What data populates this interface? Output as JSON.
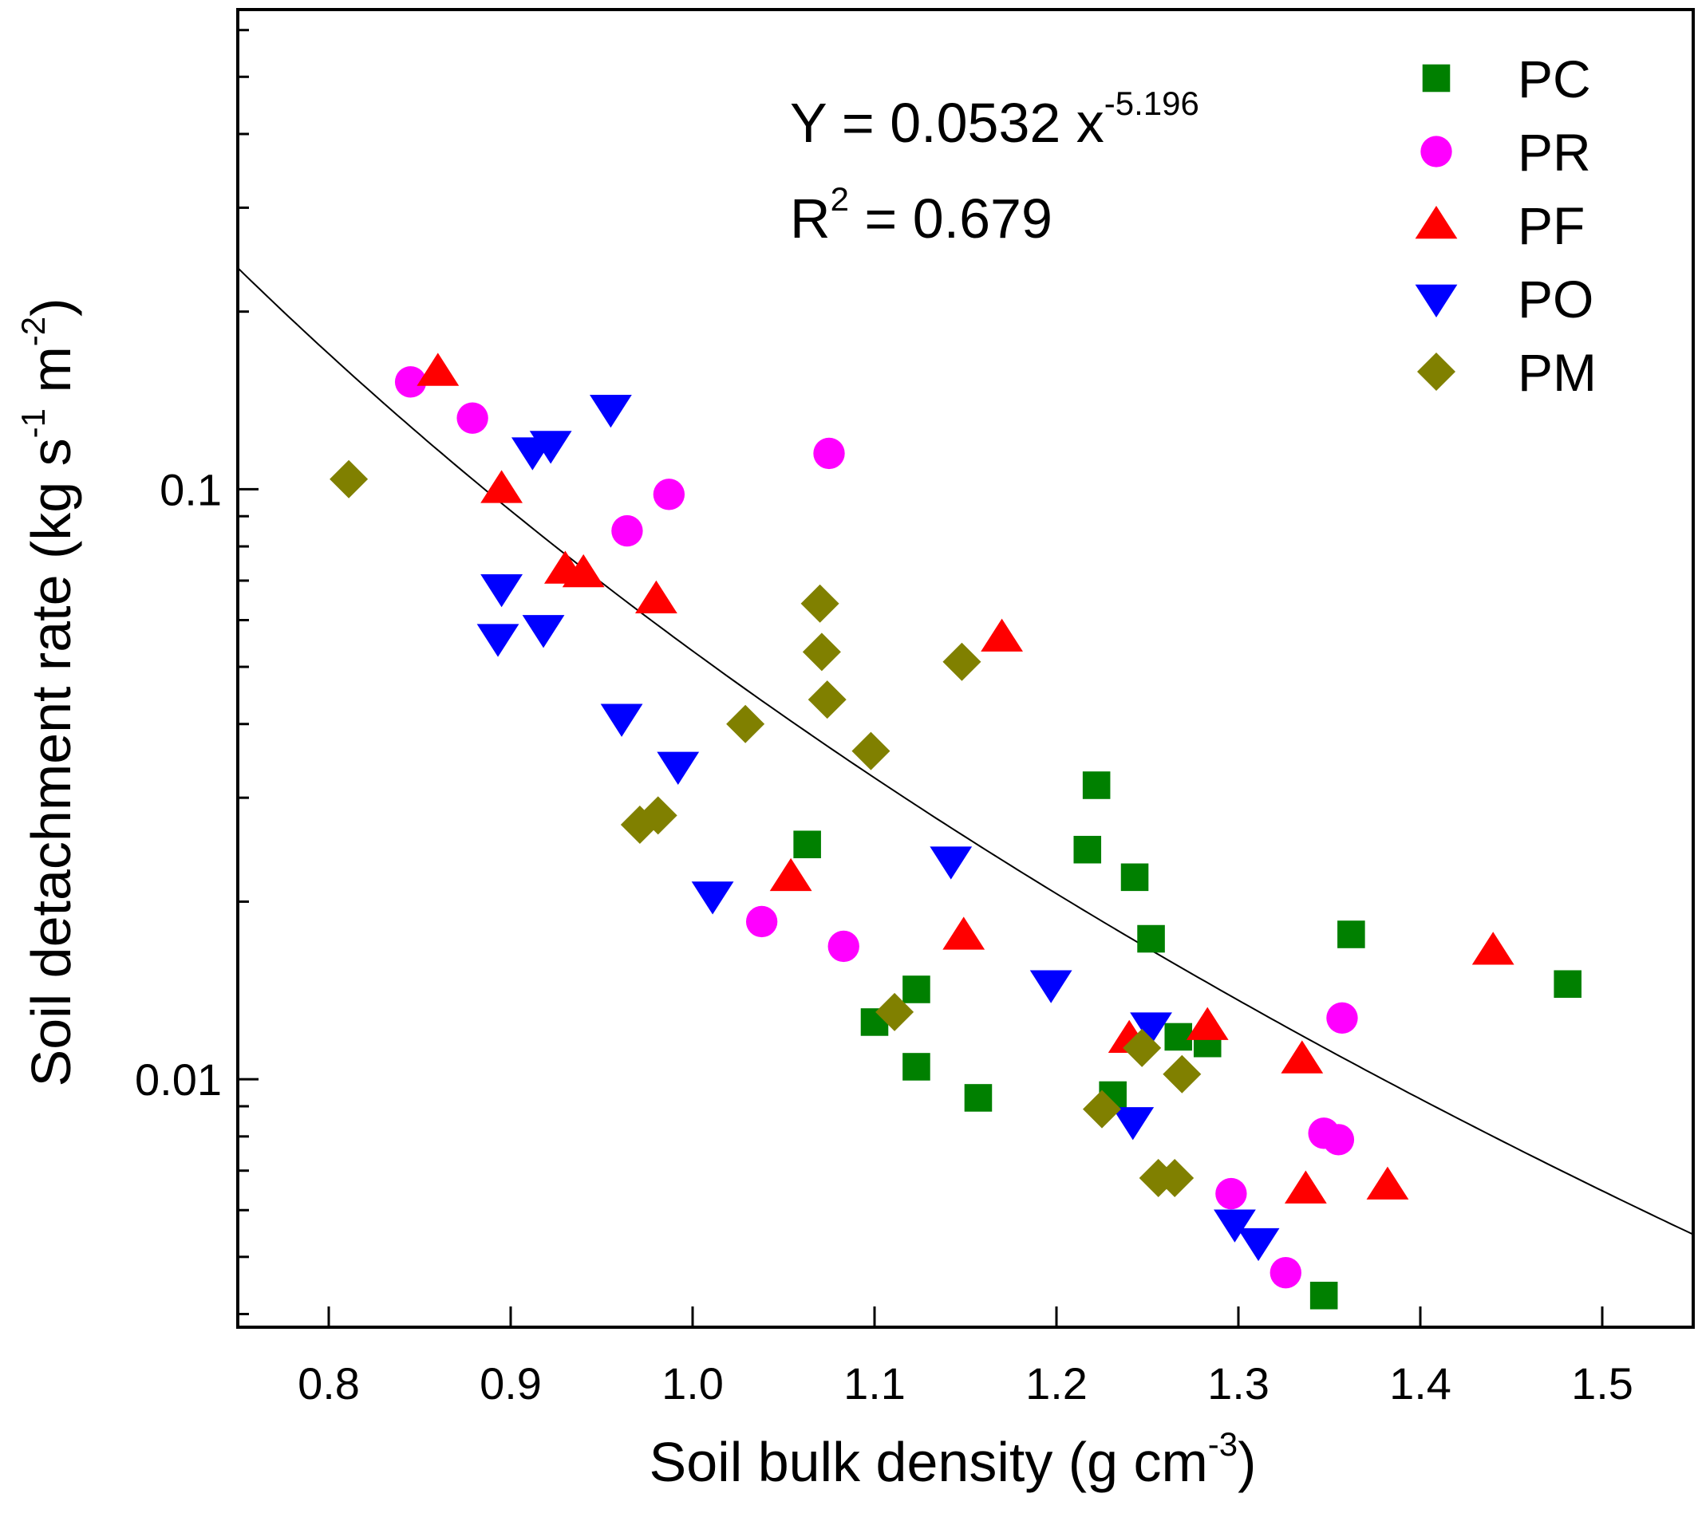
{
  "chart_data": {
    "type": "scatter",
    "title": "",
    "xlabel": "Soil bulk density (g cm",
    "xlabel_sup": "-3",
    "xlabel_tail": ")",
    "ylabel_parts": [
      "Soil detachment rate (kg s",
      "-1",
      " m",
      "-2",
      ")"
    ],
    "x_range": [
      0.75,
      1.55
    ],
    "y_range": [
      0.0038,
      0.65
    ],
    "y_scale": "log",
    "x_ticks": [
      0.8,
      0.9,
      1.0,
      1.1,
      1.2,
      1.3,
      1.4,
      1.5
    ],
    "x_tick_labels": [
      "0.8",
      "0.9",
      "1.0",
      "1.1",
      "1.2",
      "1.3",
      "1.4",
      "1.5"
    ],
    "y_major_ticks": [
      0.01,
      0.1
    ],
    "y_tick_labels": [
      "0.01",
      "0.1"
    ],
    "legend_position": "top-right",
    "grid": false,
    "equation": {
      "main": "Y = 0.0532 x",
      "exponent": "-5.196",
      "r2_prefix": "R",
      "r2_sup": "2",
      "r2_value": " = 0.679"
    },
    "fit": {
      "a": 0.0532,
      "b": -5.196
    },
    "series": [
      {
        "name": "PC",
        "marker": "square",
        "color": "#008000",
        "points": [
          [
            1.063,
            0.025
          ],
          [
            1.222,
            0.0315
          ],
          [
            1.217,
            0.0245
          ],
          [
            1.243,
            0.022
          ],
          [
            1.252,
            0.0173
          ],
          [
            1.362,
            0.0176
          ],
          [
            1.481,
            0.0145
          ],
          [
            1.123,
            0.0142
          ],
          [
            1.1,
            0.0125
          ],
          [
            1.123,
            0.0105
          ],
          [
            1.157,
            0.0093
          ],
          [
            1.231,
            0.0094
          ],
          [
            1.267,
            0.0118
          ],
          [
            1.283,
            0.0115
          ],
          [
            1.347,
            0.0043
          ]
        ]
      },
      {
        "name": "PR",
        "marker": "circle",
        "color": "#ff00ff",
        "points": [
          [
            0.845,
            0.152
          ],
          [
            0.879,
            0.132
          ],
          [
            0.987,
            0.098
          ],
          [
            0.964,
            0.085
          ],
          [
            1.075,
            0.115
          ],
          [
            1.038,
            0.0185
          ],
          [
            1.083,
            0.0168
          ],
          [
            1.357,
            0.0127
          ],
          [
            1.347,
            0.0081
          ],
          [
            1.355,
            0.0079
          ],
          [
            1.296,
            0.0064
          ],
          [
            1.326,
            0.0047
          ]
        ]
      },
      {
        "name": "PF",
        "marker": "triangle-up",
        "color": "#ff0000",
        "points": [
          [
            0.86,
            0.158
          ],
          [
            0.895,
            0.1
          ],
          [
            0.93,
            0.073
          ],
          [
            0.94,
            0.072
          ],
          [
            0.98,
            0.065
          ],
          [
            1.17,
            0.056
          ],
          [
            1.054,
            0.022
          ],
          [
            1.149,
            0.0175
          ],
          [
            1.44,
            0.0165
          ],
          [
            1.283,
            0.0123
          ],
          [
            1.24,
            0.0117
          ],
          [
            1.335,
            0.0108
          ],
          [
            1.337,
            0.0065
          ],
          [
            1.382,
            0.0066
          ]
        ]
      },
      {
        "name": "PO",
        "marker": "triangle-down",
        "color": "#0000ff",
        "points": [
          [
            0.955,
            0.137
          ],
          [
            0.912,
            0.116
          ],
          [
            0.922,
            0.119
          ],
          [
            0.895,
            0.068
          ],
          [
            0.893,
            0.056
          ],
          [
            0.918,
            0.058
          ],
          [
            0.961,
            0.041
          ],
          [
            0.992,
            0.034
          ],
          [
            1.011,
            0.0205
          ],
          [
            1.142,
            0.0235
          ],
          [
            1.197,
            0.0145
          ],
          [
            1.252,
            0.0123
          ],
          [
            1.242,
            0.0085
          ],
          [
            1.298,
            0.0057
          ],
          [
            1.311,
            0.0053
          ]
        ]
      },
      {
        "name": "PM",
        "marker": "diamond",
        "color": "#808000",
        "points": [
          [
            0.811,
            0.104
          ],
          [
            1.07,
            0.064
          ],
          [
            1.071,
            0.053
          ],
          [
            1.148,
            0.051
          ],
          [
            1.074,
            0.044
          ],
          [
            1.029,
            0.04
          ],
          [
            1.098,
            0.036
          ],
          [
            0.971,
            0.027
          ],
          [
            0.981,
            0.028
          ],
          [
            1.111,
            0.013
          ],
          [
            1.247,
            0.0113
          ],
          [
            1.269,
            0.0102
          ],
          [
            1.225,
            0.0089
          ],
          [
            1.256,
            0.0068
          ],
          [
            1.265,
            0.0068
          ]
        ]
      }
    ]
  }
}
